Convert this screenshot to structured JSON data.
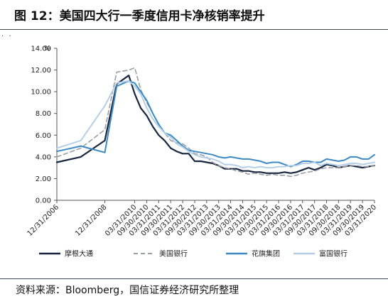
{
  "header": {
    "title": "图 12：美国四大行一季度信用卡净核销率提升"
  },
  "footer": {
    "source": "资料来源：Bloomberg，国信证券经济研究所整理"
  },
  "chart_data": {
    "type": "line",
    "unit_label": "%",
    "ylim": [
      0,
      14
    ],
    "y_ticks": [
      "0.00",
      "2.00",
      "4.00",
      "6.00",
      "8.00",
      "10.00",
      "12.00",
      "14.00"
    ],
    "x_ticks": [
      "12/31/2006",
      "12/31/2008",
      "03/31/2010",
      "09/30/2010",
      "03/31/2011",
      "09/30/2011",
      "03/31/2012",
      "09/30/2012",
      "03/31/2013",
      "09/30/2013",
      "03/31/2014",
      "09/30/2014",
      "03/31/2015",
      "09/30/2015",
      "03/31/2016",
      "09/30/2016",
      "03/31/2017",
      "09/30/2017",
      "03/31/2018",
      "09/30/2018",
      "03/31/2019",
      "09/30/2019",
      "03/31/2020"
    ],
    "x": [
      "12/31/2006",
      "12/31/2007",
      "12/31/2008",
      "06/30/2009",
      "12/31/2009",
      "03/31/2010",
      "06/30/2010",
      "09/30/2010",
      "12/31/2010",
      "03/31/2011",
      "06/30/2011",
      "09/30/2011",
      "12/31/2011",
      "03/31/2012",
      "06/30/2012",
      "09/30/2012",
      "12/31/2012",
      "03/31/2013",
      "06/30/2013",
      "09/30/2013",
      "12/31/2013",
      "03/31/2014",
      "06/30/2014",
      "09/30/2014",
      "12/31/2014",
      "03/31/2015",
      "06/30/2015",
      "09/30/2015",
      "12/31/2015",
      "03/31/2016",
      "06/30/2016",
      "09/30/2016",
      "12/31/2016",
      "03/31/2017",
      "06/30/2017",
      "09/30/2017",
      "12/31/2017",
      "03/31/2018",
      "06/30/2018",
      "09/30/2018",
      "12/31/2018",
      "03/31/2019",
      "06/30/2019",
      "09/30/2019",
      "12/31/2019",
      "03/31/2020"
    ],
    "series": [
      {
        "name": "摩根大通",
        "color": "#17263f",
        "dash": "none",
        "width": 2.2,
        "values": [
          3.5,
          4.0,
          5.5,
          10.7,
          11.5,
          9.8,
          8.5,
          7.8,
          6.8,
          6.0,
          5.5,
          4.8,
          4.5,
          4.3,
          4.3,
          3.6,
          3.6,
          3.5,
          3.4,
          3.2,
          2.9,
          2.9,
          2.9,
          2.7,
          2.7,
          2.6,
          2.6,
          2.5,
          2.5,
          2.5,
          2.6,
          2.5,
          2.6,
          2.8,
          3.0,
          2.8,
          3.0,
          3.3,
          3.2,
          3.0,
          3.1,
          3.2,
          3.1,
          3.0,
          3.1,
          3.2
        ]
      },
      {
        "name": "美国银行",
        "color": "#9a9ea6",
        "dash": "6,4",
        "width": 1.6,
        "values": [
          4.0,
          4.8,
          6.5,
          11.8,
          12.0,
          12.2,
          10.2,
          9.0,
          8.0,
          7.0,
          6.2,
          5.5,
          5.3,
          5.2,
          4.8,
          4.3,
          4.2,
          4.0,
          3.5,
          3.2,
          3.0,
          2.9,
          2.7,
          2.6,
          2.4,
          2.5,
          2.4,
          2.3,
          2.4,
          2.3,
          2.3,
          2.2,
          2.3,
          2.5,
          2.6,
          2.7,
          2.9,
          3.0,
          3.0,
          3.0,
          3.1,
          3.2,
          3.2,
          3.1,
          3.1,
          3.2
        ]
      },
      {
        "name": "花旗集团",
        "color": "#3d89c4",
        "dash": "none",
        "width": 2.0,
        "values": [
          4.5,
          5.0,
          4.4,
          10.5,
          11.0,
          10.8,
          10.0,
          9.2,
          8.0,
          7.0,
          6.2,
          6.0,
          5.5,
          5.0,
          4.6,
          4.5,
          4.4,
          4.3,
          4.2,
          4.0,
          3.9,
          4.0,
          3.9,
          3.8,
          3.8,
          3.7,
          3.6,
          3.4,
          3.5,
          3.5,
          3.3,
          3.1,
          3.3,
          3.6,
          3.6,
          3.5,
          3.5,
          3.8,
          3.7,
          3.6,
          3.7,
          4.0,
          4.0,
          3.8,
          3.8,
          4.2
        ]
      },
      {
        "name": "富国银行",
        "color": "#b5cfe6",
        "dash": "none",
        "width": 2.0,
        "values": [
          4.8,
          5.5,
          8.7,
          10.8,
          11.0,
          10.5,
          9.8,
          8.5,
          7.5,
          6.8,
          6.2,
          5.8,
          5.2,
          4.9,
          4.5,
          4.2,
          4.0,
          3.9,
          3.8,
          3.6,
          3.3,
          3.3,
          3.2,
          3.0,
          3.1,
          3.0,
          3.1,
          3.0,
          3.0,
          3.1,
          3.1,
          3.2,
          3.2,
          3.4,
          3.4,
          3.5,
          3.2,
          3.4,
          3.3,
          3.2,
          3.3,
          3.4,
          3.4,
          3.3,
          3.4,
          3.5
        ]
      }
    ]
  }
}
